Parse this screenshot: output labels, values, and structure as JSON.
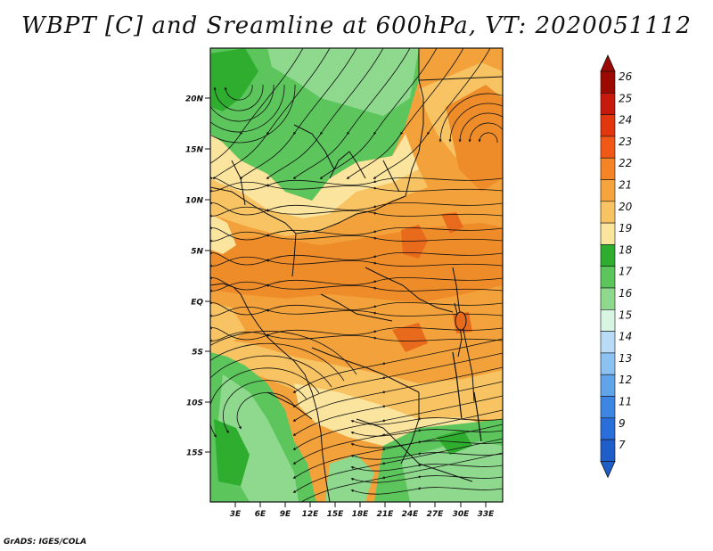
{
  "title": "WBPT [C] and Sreamline at 600hPa, VT: 2020051112",
  "credit": "GrADS: IGES/COLA",
  "lat_labels": [
    "20N",
    "15N",
    "10N",
    "5N",
    "EQ",
    "5S",
    "10S",
    "15S"
  ],
  "lon_labels": [
    "3E",
    "6E",
    "9E",
    "12E",
    "15E",
    "18E",
    "21E",
    "24E",
    "27E",
    "30E",
    "33E"
  ],
  "colorbar": {
    "labels": [
      "26",
      "25",
      "24",
      "23",
      "22",
      "21",
      "20",
      "19",
      "18",
      "17",
      "16",
      "15",
      "14",
      "13",
      "12",
      "11",
      "9",
      "7"
    ],
    "colors": [
      "#9b0a00",
      "#c81a0c",
      "#e2360f",
      "#f05818",
      "#f48426",
      "#f5a43e",
      "#f8c363",
      "#fbe59e",
      "#2fad2f",
      "#5cc55c",
      "#8ed98e",
      "#d8f4e2",
      "#b8dcf8",
      "#8cc2f2",
      "#62a4ea",
      "#3d87e2",
      "#2a6fd9",
      "#1f5dc8"
    ],
    "top_arrow_color": "#9b0a00",
    "bottom_arrow_color": "#1f5dc8"
  },
  "field_colors": {
    "orange": "#f3a23b",
    "dark_orange": "#ef8c2a",
    "red_orange": "#e86a1c",
    "yellow": "#f8c363",
    "pale_yellow": "#fbe59e",
    "green": "#5cc55c",
    "light_green": "#8ed98e",
    "dark_green": "#2fad2f"
  }
}
